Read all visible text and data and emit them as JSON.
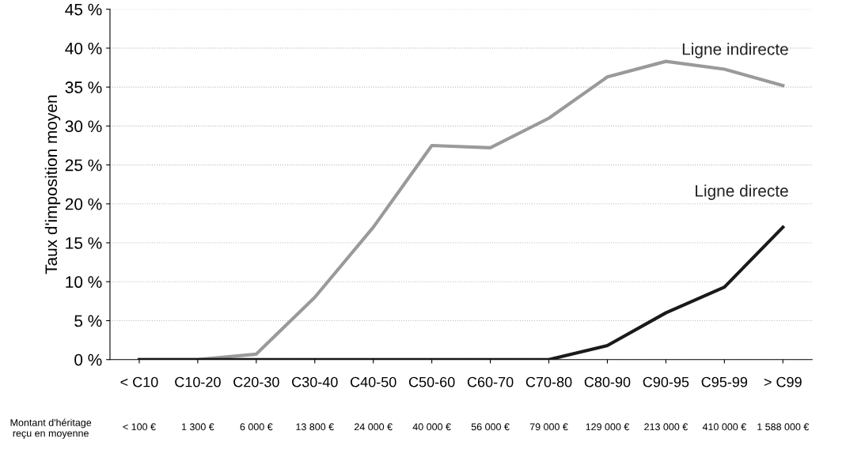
{
  "chart_data": {
    "type": "line",
    "ylabel": "Taux d'imposition moyen",
    "categories": [
      "< C10",
      "C10-20",
      "C20-30",
      "C30-40",
      "C40-50",
      "C50-60",
      "C60-70",
      "C70-80",
      "C80-90",
      "C90-95",
      "C95-99",
      "> C99"
    ],
    "series": [
      {
        "name": "Ligne indirecte",
        "color": "#9a9a9a",
        "values": [
          0,
          0,
          0.7,
          8,
          17,
          27.5,
          27.2,
          31,
          36.3,
          38.3,
          37.3,
          35.2
        ]
      },
      {
        "name": "Ligne directe",
        "color": "#1a1a1a",
        "values": [
          0,
          0,
          0,
          0,
          0,
          0,
          0,
          0,
          1.8,
          6,
          9.3,
          17
        ]
      }
    ],
    "ylim": [
      0,
      45
    ],
    "yticks": [
      {
        "value": 0,
        "label": "0 %"
      },
      {
        "value": 5,
        "label": "5 %"
      },
      {
        "value": 10,
        "label": "10 %"
      },
      {
        "value": 15,
        "label": "15 %"
      },
      {
        "value": 20,
        "label": "20 %"
      },
      {
        "value": 25,
        "label": "25 %"
      },
      {
        "value": 30,
        "label": "30 %"
      },
      {
        "value": 35,
        "label": "35 %"
      },
      {
        "value": 40,
        "label": "40 %"
      },
      {
        "value": 45,
        "label": "45 %"
      }
    ],
    "grid": "y",
    "marker": "none",
    "line_style": "solid",
    "legend": false,
    "annotations": [
      "Montant d'héritage\nreçu en moyenne",
      "< 100 €",
      "1 300 €",
      "6 000 €",
      "13 800 €",
      "24 000 €",
      "40 000 €",
      "56 000 €",
      "79 000 €",
      "129 000 €",
      "213 000 €",
      "410 000 €",
      "1 588 000 €"
    ]
  }
}
